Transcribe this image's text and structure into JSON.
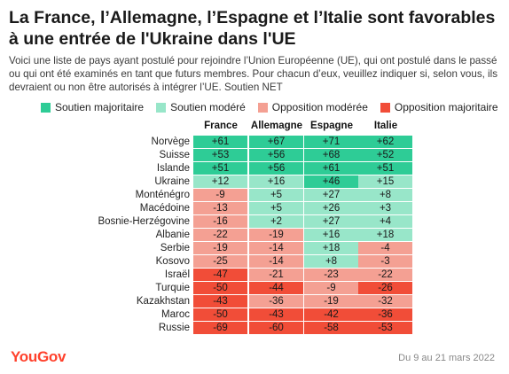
{
  "title": "La France, l’Allemagne, l’Espagne et l’Italie sont favorables à une entrée de l'Ukraine dans l'UE",
  "subtitle": "Voici une liste de pays ayant postulé pour rejoindre l’Union Européenne (UE), qui ont postulé dans le passé ou qui ont été examinés en tant que futurs membres. Pour chacun d’eux, veuillez indiquer si, selon vous, ils devraient ou non être autorisés à intégrer l’UE. Soutien NET",
  "legend": [
    {
      "label": "Soutien majoritaire",
      "color": "#2ecc96"
    },
    {
      "label": "Soutien modéré",
      "color": "#98e6c9"
    },
    {
      "label": "Opposition modérée",
      "color": "#f4a093"
    },
    {
      "label": "Opposition majoritaire",
      "color": "#f14d38"
    }
  ],
  "footer": {
    "brand": "YouGov",
    "date": "Du 9 au 21 mars 2022"
  },
  "chart_data": {
    "type": "table",
    "columns": [
      "France",
      "Allemagne",
      "Espagne",
      "Italie"
    ],
    "rows": [
      {
        "country": "Norvège",
        "values": [
          "+61",
          "+67",
          "+71",
          "+62"
        ],
        "levels": [
          "sm",
          "sm",
          "sm",
          "sm"
        ]
      },
      {
        "country": "Suisse",
        "values": [
          "+53",
          "+56",
          "+68",
          "+52"
        ],
        "levels": [
          "sm",
          "sm",
          "sm",
          "sm"
        ]
      },
      {
        "country": "Islande",
        "values": [
          "+51",
          "+56",
          "+61",
          "+51"
        ],
        "levels": [
          "sm",
          "sm",
          "sm",
          "sm"
        ]
      },
      {
        "country": "Ukraine",
        "values": [
          "+12",
          "+16",
          "+46",
          "+15"
        ],
        "levels": [
          "smo",
          "smo",
          "sm",
          "smo"
        ]
      },
      {
        "country": "Monténégro",
        "values": [
          "-9",
          "+5",
          "+27",
          "+8"
        ],
        "levels": [
          "omo",
          "smo",
          "smo",
          "smo"
        ]
      },
      {
        "country": "Macédoine",
        "values": [
          "-13",
          "+5",
          "+26",
          "+3"
        ],
        "levels": [
          "omo",
          "smo",
          "smo",
          "smo"
        ]
      },
      {
        "country": "Bosnie-Herzégovine",
        "values": [
          "-16",
          "+2",
          "+27",
          "+4"
        ],
        "levels": [
          "omo",
          "smo",
          "smo",
          "smo"
        ]
      },
      {
        "country": "Albanie",
        "values": [
          "-22",
          "-19",
          "+16",
          "+18"
        ],
        "levels": [
          "omo",
          "omo",
          "smo",
          "smo"
        ]
      },
      {
        "country": "Serbie",
        "values": [
          "-19",
          "-14",
          "+18",
          "-4"
        ],
        "levels": [
          "omo",
          "omo",
          "smo",
          "omo"
        ]
      },
      {
        "country": "Kosovo",
        "values": [
          "-25",
          "-14",
          "+8",
          "-3"
        ],
        "levels": [
          "omo",
          "omo",
          "smo",
          "omo"
        ]
      },
      {
        "country": "Israël",
        "values": [
          "-47",
          "-21",
          "-23",
          "-22"
        ],
        "levels": [
          "oma",
          "omo",
          "omo",
          "omo"
        ]
      },
      {
        "country": "Turquie",
        "values": [
          "-50",
          "-44",
          "-9",
          "-26"
        ],
        "levels": [
          "oma",
          "oma",
          "omo",
          "oma"
        ]
      },
      {
        "country": "Kazakhstan",
        "values": [
          "-43",
          "-36",
          "-19",
          "-32"
        ],
        "levels": [
          "oma",
          "omo",
          "omo",
          "omo"
        ]
      },
      {
        "country": "Maroc",
        "values": [
          "-50",
          "-43",
          "-42",
          "-36"
        ],
        "levels": [
          "oma",
          "oma",
          "oma",
          "oma"
        ]
      },
      {
        "country": "Russie",
        "values": [
          "-69",
          "-60",
          "-58",
          "-53"
        ],
        "levels": [
          "oma",
          "oma",
          "oma",
          "oma"
        ]
      }
    ],
    "level_colors": {
      "sm": "#2ecc96",
      "smo": "#98e6c9",
      "omo": "#f4a093",
      "oma": "#f14d38"
    }
  }
}
